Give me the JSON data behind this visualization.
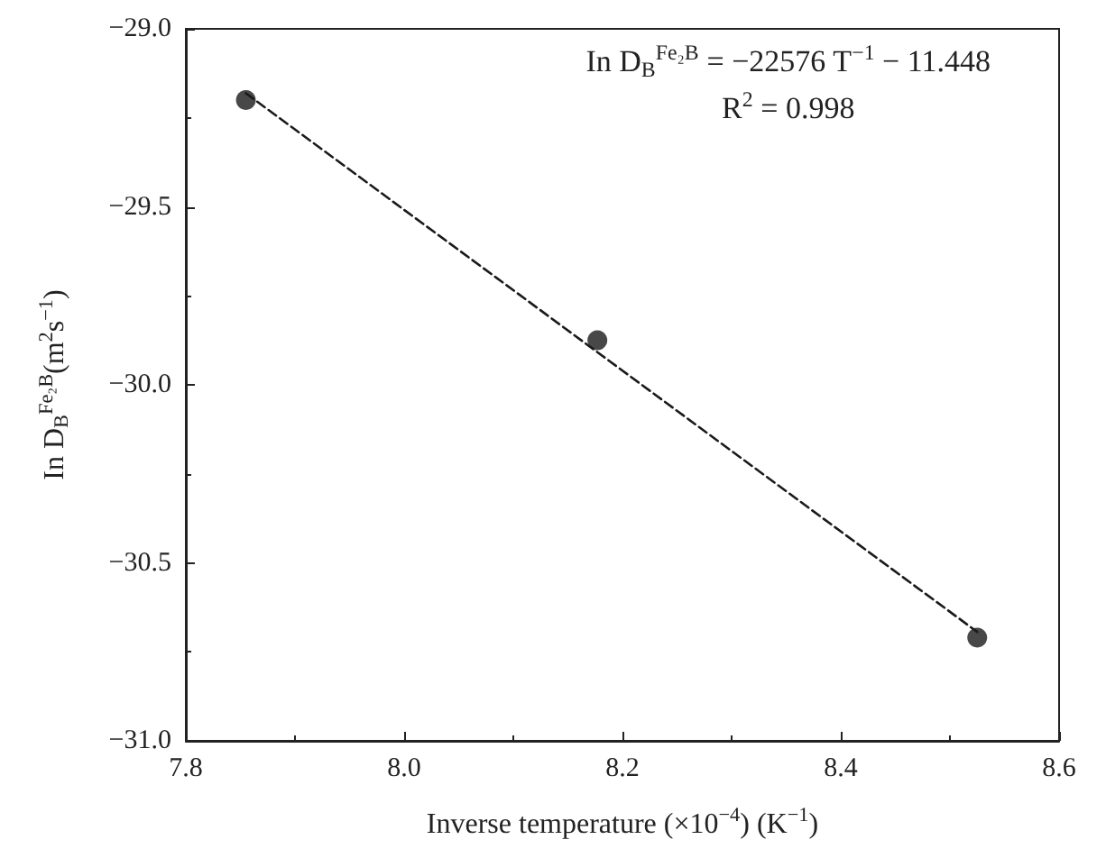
{
  "chart_data": {
    "type": "scatter",
    "xlabel": "Inverse temperature (×10$^{−4}$) (K$^{−1}$)",
    "ylabel": "In D$_{B}$$^{Fe₂B}$(m$^{2}$s$^{−1}$)",
    "annotations": [
      "In D$_{B}$$^{Fe₂B}$ = −22576 T$^{−1}$ − 11.448",
      "R$^{2}$ = 0.998"
    ],
    "series": [
      {
        "color": "#1a1a1a",
        "marker": "circle",
        "x": [
          7.855,
          8.177,
          8.525
        ],
        "values": [
          -29.2,
          -29.875,
          -30.71
        ]
      },
      {
        "type": "line",
        "color": "#1a1a1a",
        "marker": "none",
        "line_style": "dashed",
        "x": [
          7.855,
          8.525
        ],
        "values": [
          -29.181,
          -30.694
        ]
      }
    ],
    "xlim": [
      7.8,
      8.6
    ],
    "xticks": [
      7.8,
      {
        "value": 8,
        "label": "8.0"
      },
      8.2,
      8.4,
      8.6
    ],
    "ylim": [
      -31.0,
      -29.0
    ],
    "yticks": [
      {
        "value": -31,
        "label": "−31.0"
      },
      {
        "value": -30.5,
        "label": "−30.5"
      },
      {
        "value": -30,
        "label": "−30.0"
      },
      {
        "value": -29.5,
        "label": "−29.5"
      },
      {
        "value": -29,
        "label": "−29.0"
      }
    ],
    "grid": false
  }
}
